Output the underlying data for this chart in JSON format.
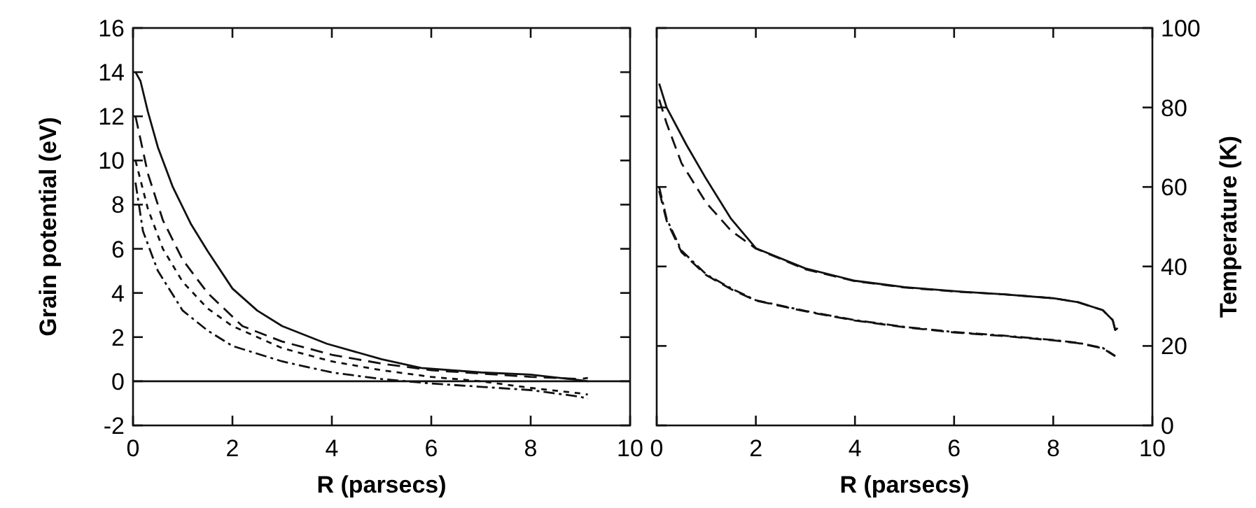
{
  "chart_data": [
    {
      "type": "line",
      "xlabel": "R (parsecs)",
      "ylabel": "Grain potential (eV)",
      "xlim": [
        0,
        10
      ],
      "xticks": [
        0,
        2,
        4,
        6,
        8,
        10
      ],
      "ylim": [
        -2,
        16
      ],
      "yticks": [
        -2,
        0,
        2,
        4,
        6,
        8,
        10,
        12,
        14,
        16
      ],
      "grid": false,
      "marker": "none",
      "ref_lines": [
        {
          "axis": "y",
          "value": 0,
          "color": "#111111"
        }
      ],
      "series": [
        {
          "color": "#111111",
          "line_style": "solid",
          "x": [
            0.05,
            0.15,
            0.3,
            0.5,
            0.8,
            1.17,
            1.5,
            2.0,
            2.5,
            3.0,
            3.9,
            5.0,
            5.8,
            7.0,
            8.0,
            9.0,
            9.15
          ],
          "values": [
            14,
            13.6,
            12.2,
            10.6,
            8.8,
            7.1,
            5.9,
            4.2,
            3.2,
            2.5,
            1.7,
            1.0,
            0.6,
            0.4,
            0.3,
            0.05,
            0
          ]
        },
        {
          "color": "#111111",
          "line_style": "dashed",
          "x": [
            0.05,
            0.3,
            0.6,
            1.0,
            1.5,
            2.2,
            3.0,
            4.0,
            5.0,
            6.0,
            7.0,
            8.0,
            9.0,
            9.15
          ],
          "values": [
            12,
            9.4,
            7.3,
            5.5,
            4.0,
            2.5,
            1.8,
            1.2,
            0.8,
            0.5,
            0.35,
            0.2,
            0.1,
            0.15
          ]
        },
        {
          "color": "#111111",
          "line_style": "dotted",
          "x": [
            0.05,
            0.3,
            0.6,
            1.0,
            1.5,
            2.0,
            3.0,
            4.0,
            5.0,
            6.0,
            7.0,
            8.0,
            9.0,
            9.15
          ],
          "values": [
            10,
            7.8,
            6.0,
            4.5,
            3.3,
            2.5,
            1.5,
            0.9,
            0.5,
            0.2,
            0,
            -0.3,
            -0.55,
            -0.6
          ]
        },
        {
          "color": "#111111",
          "line_style": "dashdot",
          "x": [
            0.05,
            0.2,
            0.5,
            1.0,
            1.5,
            2.0,
            3.0,
            4.0,
            5.0,
            6.0,
            7.0,
            8.0,
            9.0,
            9.15
          ],
          "values": [
            9,
            6.8,
            5.0,
            3.2,
            2.3,
            1.6,
            0.9,
            0.4,
            0.1,
            -0.1,
            -0.25,
            -0.4,
            -0.7,
            -0.8
          ]
        }
      ]
    },
    {
      "type": "line",
      "xlabel": "R (parsecs)",
      "y2label": "Temperature (K)",
      "xlim": [
        0,
        10
      ],
      "xticks": [
        0,
        2,
        4,
        6,
        8,
        10
      ],
      "y2lim": [
        0,
        100
      ],
      "y2ticks": [
        0,
        20,
        40,
        60,
        80,
        100
      ],
      "grid": false,
      "marker": "none",
      "series": [
        {
          "color": "#111111",
          "line_style": "solid",
          "axis": "y2",
          "x": [
            0.05,
            0.2,
            0.6,
            1.0,
            1.5,
            2.0,
            3.0,
            4.0,
            5.0,
            6.1,
            7.0,
            8.0,
            8.5,
            9.0,
            9.2,
            9.25,
            9.3
          ],
          "values": [
            86,
            80,
            70.6,
            62,
            52,
            44.6,
            39.5,
            36.4,
            34.8,
            33.7,
            33,
            32,
            31,
            29,
            26.5,
            24,
            24.5
          ]
        },
        {
          "color": "#111111",
          "line_style": "dashed",
          "axis": "y2",
          "x": [
            0.05,
            0.2,
            0.5,
            1.0,
            1.5,
            2.0,
            3.0,
            4.0,
            5.0,
            6.1,
            7.0,
            8.0,
            8.5,
            9.0,
            9.2,
            9.25
          ],
          "values": [
            82,
            76,
            66,
            56,
            49,
            44.5,
            39.3,
            36.3,
            34.7,
            33.6,
            33,
            32,
            31,
            29,
            26.5,
            24
          ]
        },
        {
          "color": "#111111",
          "line_style": "dashdot",
          "axis": "y2",
          "x": [
            0.05,
            0.2,
            0.5,
            1.0,
            1.5,
            2.0,
            3.0,
            4.0,
            5.0,
            6.0,
            7.0,
            8.0,
            8.5,
            9.0,
            9.25
          ],
          "values": [
            60,
            52,
            44,
            38,
            34.5,
            31.5,
            28.8,
            26.5,
            24.8,
            23.5,
            22.6,
            21.5,
            20.8,
            19.5,
            17.5
          ]
        },
        {
          "color": "#111111",
          "line_style": "dashed",
          "axis": "y2",
          "x": [
            0.05,
            0.2,
            0.5,
            1.0,
            1.5,
            2.0,
            3.0,
            4.0,
            5.0,
            6.0,
            7.0,
            8.0,
            8.5,
            9.0,
            9.25
          ],
          "values": [
            59,
            51.5,
            43.6,
            37.8,
            34.3,
            31.4,
            28.7,
            26.4,
            24.7,
            23.4,
            22.5,
            21.4,
            20.7,
            19.4,
            17.4
          ]
        }
      ]
    }
  ]
}
